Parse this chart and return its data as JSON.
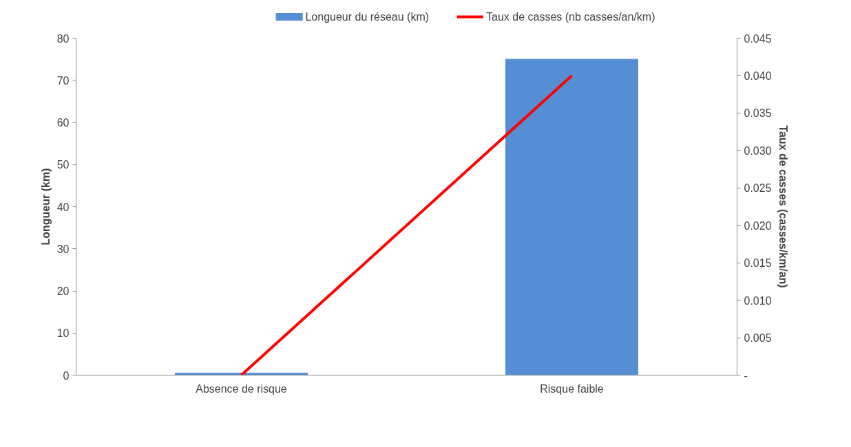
{
  "chart_data": {
    "type": "bar",
    "categories": [
      "Absence de risque",
      "Risque faible"
    ],
    "ylabel": "Longueur (km)",
    "y2label": "Taux de casses (casses/km/an)",
    "series": [
      {
        "name": "Longueur du réseau (km)",
        "color": "#558ed5",
        "values": [
          0.5,
          75
        ]
      },
      {
        "name": "Taux de casses (nb casses/an/km)",
        "type": "line",
        "axis": "y2",
        "color": "#ff0000",
        "values": [
          0,
          0.04
        ]
      }
    ],
    "ylim": [
      0,
      80
    ],
    "yticks": [
      0,
      10,
      20,
      30,
      40,
      50,
      60,
      70,
      80
    ],
    "y2lim": [
      0,
      0.045
    ],
    "y2ticks": [
      {
        "value": 0,
        "label": "-"
      },
      0.005,
      {
        "value": 0.01,
        "label": "0.010"
      },
      0.015,
      {
        "value": 0.02,
        "label": "0.020"
      },
      0.025,
      {
        "value": 0.03,
        "label": "0.030"
      },
      0.035,
      {
        "value": 0.04,
        "label": "0.040"
      },
      0.045
    ],
    "grid": false,
    "legend": "top",
    "marker": "none",
    "line_style": "solid"
  }
}
